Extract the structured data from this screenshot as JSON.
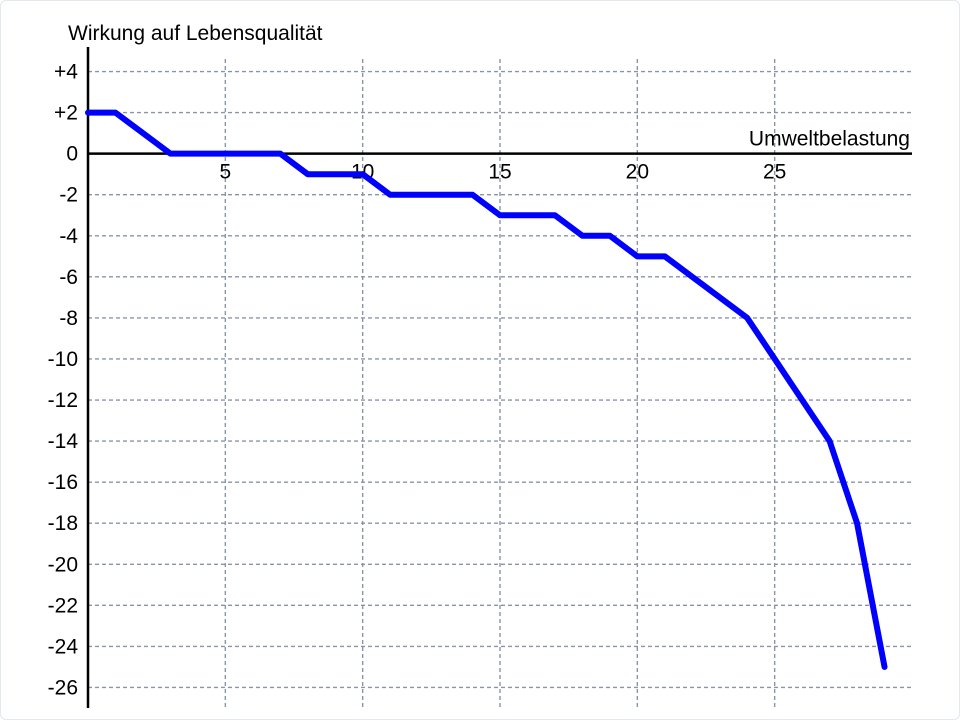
{
  "chart_data": {
    "type": "line",
    "ylabel": "Wirkung auf Lebensqualität",
    "xlabel": "Umweltbelastung",
    "xlim": [
      0,
      30
    ],
    "ylim": [
      -27,
      5
    ],
    "x_ticks": [
      5,
      10,
      15,
      20,
      25
    ],
    "y_ticks": [
      4,
      2,
      0,
      -2,
      -4,
      -6,
      -8,
      -10,
      -12,
      -14,
      -16,
      -18,
      -20,
      -22,
      -24,
      -26
    ],
    "y_tick_labels": [
      "+4",
      "+2",
      "0",
      "-2",
      "-4",
      "-6",
      "-8",
      "-10",
      "-12",
      "-14",
      "-16",
      "-18",
      "-20",
      "-22",
      "-24",
      "-26"
    ],
    "grid": true,
    "series": [
      {
        "color": "#0000ff",
        "x": [
          0,
          1,
          3,
          7,
          8,
          10,
          11,
          14,
          15,
          17,
          18,
          19,
          20,
          21,
          24,
          25,
          27,
          28,
          29
        ],
        "y": [
          2,
          2,
          0,
          0,
          -1,
          -1,
          -2,
          -2,
          -3,
          -3,
          -4,
          -4,
          -5,
          -5,
          -8,
          -10,
          -14,
          -18,
          -25
        ]
      }
    ]
  },
  "colors": {
    "grid": "#8a94a8",
    "axis": "#000000",
    "line": "#0000ff"
  }
}
